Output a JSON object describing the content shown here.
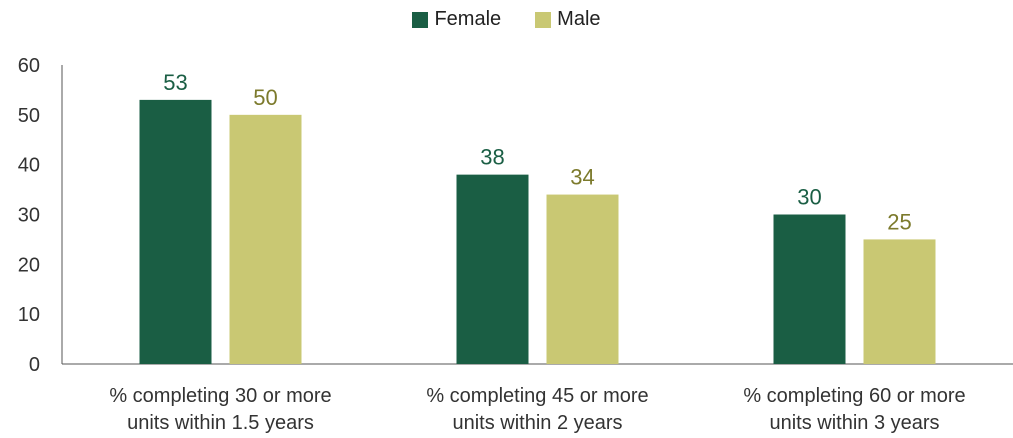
{
  "chart_data": {
    "type": "bar",
    "categories": [
      [
        "% completing 30 or more",
        "units within 1.5 years"
      ],
      [
        "% completing 45 or more",
        "units within 2 years"
      ],
      [
        "% completing 60 or more",
        "units within 3 years"
      ]
    ],
    "series": [
      {
        "name": "Female",
        "values": [
          53,
          38,
          30
        ],
        "color": "#1a5e44"
      },
      {
        "name": "Male",
        "values": [
          50,
          34,
          25
        ],
        "color": "#c9c873"
      }
    ],
    "label_colors": {
      "Female": "#1a5e44",
      "Male": "#7c7a2c"
    },
    "ylim": [
      0,
      60
    ],
    "yticks": [
      0,
      10,
      20,
      30,
      40,
      50,
      60
    ],
    "grid": false,
    "legend": "top-center"
  }
}
